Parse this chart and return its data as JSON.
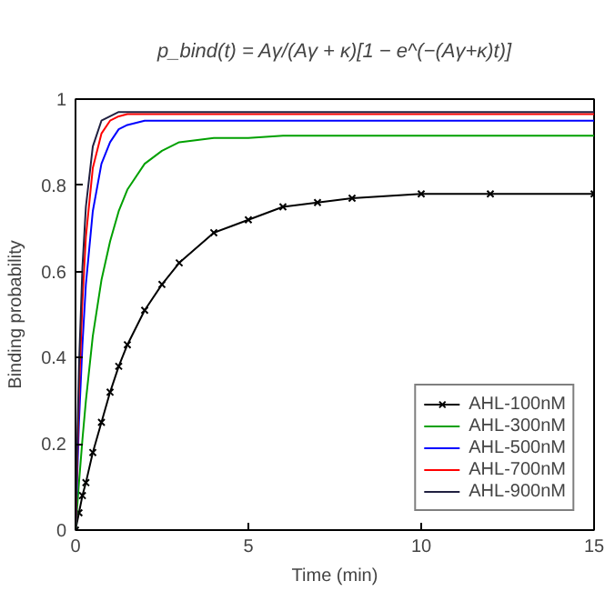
{
  "chart_data": {
    "type": "line",
    "annotations": [
      "p_bind(t) = Aγ/(Aγ + κ)[1 − e^(−(Aγ+κ)t)]"
    ],
    "xlabel": "Time (min)",
    "ylabel": "Binding probability",
    "x": [
      0,
      0.1,
      0.2,
      0.3,
      0.5,
      0.75,
      1,
      1.25,
      1.5,
      2,
      2.5,
      3,
      4,
      5,
      6,
      7,
      8,
      10,
      12,
      15
    ],
    "series": [
      {
        "name": "AHL-100nM",
        "color": "#000000",
        "marker": "cross",
        "values": [
          0,
          0.04,
          0.08,
          0.11,
          0.18,
          0.25,
          0.32,
          0.38,
          0.43,
          0.51,
          0.57,
          0.62,
          0.69,
          0.72,
          0.75,
          0.76,
          0.77,
          0.78,
          0.78,
          0.78
        ]
      },
      {
        "name": "AHL-300nM",
        "color": "#00a000",
        "values": [
          0,
          0.11,
          0.21,
          0.3,
          0.45,
          0.58,
          0.67,
          0.74,
          0.79,
          0.85,
          0.88,
          0.9,
          0.91,
          0.91,
          0.915,
          0.915,
          0.915,
          0.915,
          0.915,
          0.915
        ]
      },
      {
        "name": "AHL-500nM",
        "color": "#0000ff",
        "values": [
          0,
          0.25,
          0.43,
          0.57,
          0.74,
          0.85,
          0.9,
          0.93,
          0.94,
          0.95,
          0.95,
          0.95,
          0.95,
          0.95,
          0.95,
          0.95,
          0.95,
          0.95,
          0.95,
          0.95
        ]
      },
      {
        "name": "AHL-700nM",
        "color": "#ff0000",
        "values": [
          0,
          0.32,
          0.53,
          0.68,
          0.84,
          0.92,
          0.95,
          0.96,
          0.965,
          0.965,
          0.965,
          0.965,
          0.965,
          0.965,
          0.965,
          0.965,
          0.965,
          0.965,
          0.965,
          0.965
        ]
      },
      {
        "name": "AHL-900nM",
        "color": "#202040",
        "values": [
          0,
          0.38,
          0.61,
          0.75,
          0.89,
          0.95,
          0.96,
          0.97,
          0.97,
          0.97,
          0.97,
          0.97,
          0.97,
          0.97,
          0.97,
          0.97,
          0.97,
          0.97,
          0.97,
          0.97
        ]
      }
    ],
    "xlim": [
      0,
      15
    ],
    "xticks": [
      0,
      5,
      10,
      15
    ],
    "ylim": [
      0,
      1
    ],
    "yticks": [
      0,
      0.2,
      0.4,
      0.6,
      0.8,
      1
    ],
    "grid": false,
    "legend": "bottom right",
    "line_style": "solid"
  }
}
